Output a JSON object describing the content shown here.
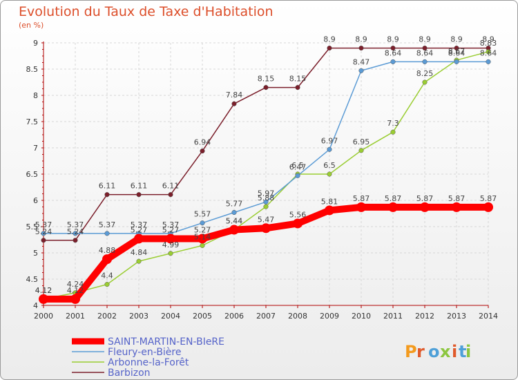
{
  "title": "Evolution du Taux de Taxe d'Habitation",
  "unit_label": "(en %)",
  "logo_text": "Proxiti",
  "chart_data": {
    "type": "line",
    "x": [
      "2000",
      "2001",
      "2002",
      "2003",
      "2004",
      "2005",
      "2006",
      "2007",
      "2008",
      "2009",
      "2010",
      "2011",
      "2012",
      "2013",
      "2014"
    ],
    "ylim": [
      4,
      9
    ],
    "yticks": [
      "4",
      "4.5",
      "5",
      "5.5",
      "6",
      "6.5",
      "7",
      "7.5",
      "8",
      "8.5",
      "9"
    ],
    "grid": true,
    "legend_position": "bottom-left",
    "series": [
      {
        "name": "SAINT-MARTIN-EN-BIeRE",
        "color": "#ff0000",
        "width": 10,
        "values": [
          4.12,
          4.12,
          4.88,
          5.27,
          5.27,
          5.27,
          5.44,
          5.47,
          5.56,
          5.81,
          5.87,
          5.87,
          5.87,
          5.87,
          5.87
        ]
      },
      {
        "name": "Fleury-en-Bière",
        "color": "#5b9bd5",
        "width": 1.5,
        "values": [
          5.37,
          5.37,
          5.37,
          5.37,
          5.37,
          5.57,
          5.77,
          5.97,
          6.47,
          6.97,
          8.47,
          8.64,
          8.64,
          8.64,
          8.64
        ]
      },
      {
        "name": "Arbonne-la-Forêt",
        "color": "#9acd32",
        "width": 1.5,
        "values": [
          4.12,
          4.24,
          4.4,
          4.84,
          4.99,
          5.14,
          5.44,
          5.88,
          6.5,
          6.5,
          6.95,
          7.3,
          8.25,
          8.67,
          8.83
        ]
      },
      {
        "name": "Barbizon",
        "color": "#7b1f2b",
        "width": 1.5,
        "values": [
          5.24,
          5.24,
          6.11,
          6.11,
          6.11,
          6.94,
          7.84,
          8.15,
          8.15,
          8.9,
          8.9,
          8.9,
          8.9,
          8.9,
          8.9
        ]
      }
    ],
    "data_labels": [
      [
        "4.12",
        "4.12",
        "4.88",
        "5.27",
        "5.27",
        "5.27",
        "5.44",
        "5.47",
        "5.56",
        "5.81",
        "5.87",
        "5.87",
        "5.87",
        "5.87",
        "5.87"
      ],
      [
        "5.37",
        "5.37",
        "5.37",
        "5.37",
        "5.37",
        "5.57",
        "5.77",
        "5.97",
        "6.47",
        "6.97",
        "8.47",
        "8.64",
        "8.64",
        "8.64",
        "8.64"
      ],
      [
        "4.12",
        "4.24",
        "4.4",
        "4.84",
        "4.99",
        "5.14",
        "5.44",
        "5.88",
        "6.5",
        "6.5",
        "6.95",
        "7.3",
        "8.25",
        "8.67",
        "8.83"
      ],
      [
        "5.24",
        "5.24",
        "6.11",
        "6.11",
        "6.11",
        "6.94",
        "7.84",
        "8.15",
        "8.15",
        "8.9",
        "8.9",
        "8.9",
        "8.9",
        "8.9",
        "8.9"
      ]
    ]
  }
}
